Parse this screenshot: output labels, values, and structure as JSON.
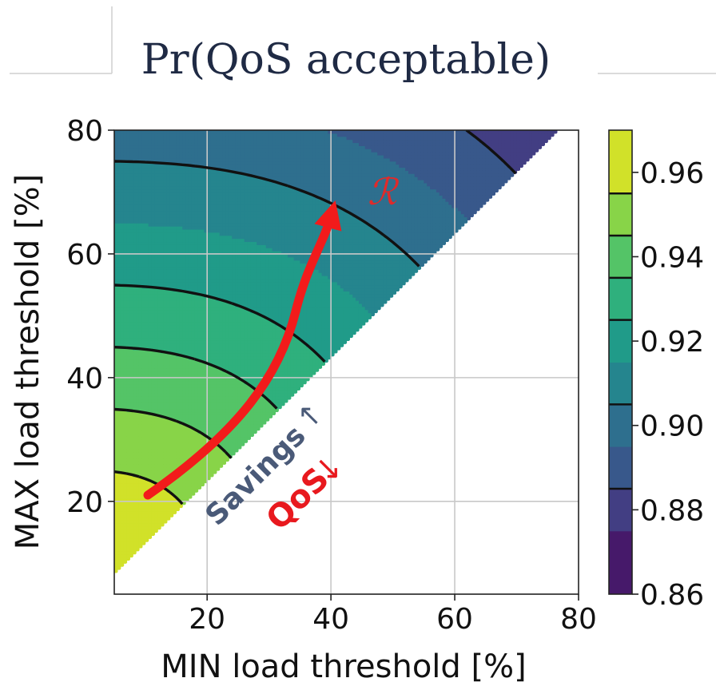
{
  "chart_data": {
    "type": "heatmap",
    "title": "Pr(QoS acceptable)",
    "xlabel": "MIN load threshold [%]",
    "ylabel": "MAX load threshold [%]",
    "xlim": [
      5,
      80
    ],
    "ylim": [
      5,
      80
    ],
    "xticks": [
      "20",
      "40",
      "60",
      "80"
    ],
    "yticks": [
      "20",
      "40",
      "60",
      "80"
    ],
    "grid": true,
    "colorbar": {
      "range": [
        0.86,
        0.97
      ],
      "ticks": [
        "0.86",
        "0.88",
        "0.90",
        "0.92",
        "0.94",
        "0.96"
      ],
      "colormap": "viridis"
    },
    "contour_levels": [
      0.955,
      0.945,
      0.935,
      0.925,
      0.915,
      0.905,
      0.895,
      0.885,
      0.875
    ],
    "dashed_contour_levels": [
      0.955,
      0.945,
      0.935,
      0.925,
      0.905,
      0.885
    ],
    "valid_region": "MAX > MIN",
    "annotations": {
      "region_symbol": "ℛ",
      "savings_text": "Savings",
      "savings_arrow": "↑",
      "qos_text": "QoS",
      "qos_arrow": "↓"
    }
  }
}
